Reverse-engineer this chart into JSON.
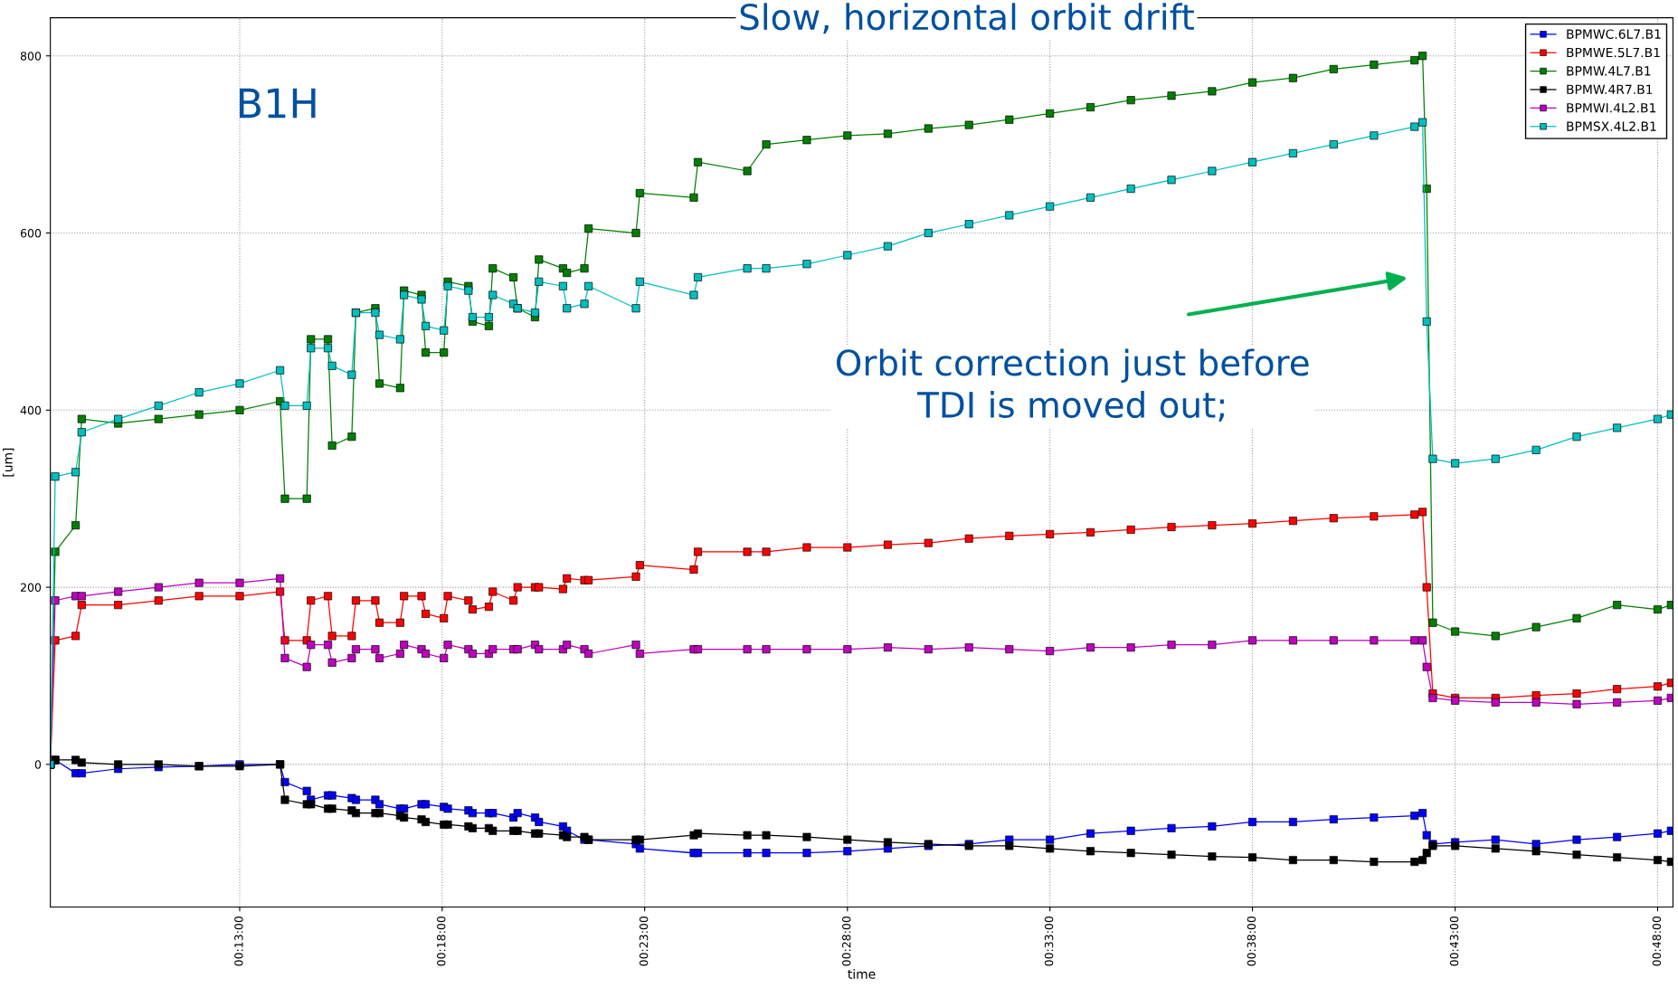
{
  "chart_data": {
    "type": "line",
    "title": "Slow, horizontal orbit drift",
    "xlabel": "time",
    "ylabel": "[um]",
    "x": [
      0.1388,
      0.1408,
      0.1492,
      0.1517,
      0.1667,
      0.1833,
      0.2,
      0.2167,
      0.2333,
      0.2353,
      0.2443,
      0.246,
      0.253,
      0.2547,
      0.2628,
      0.2645,
      0.2725,
      0.2742,
      0.2827,
      0.2843,
      0.2915,
      0.2932,
      0.3007,
      0.3023,
      0.3108,
      0.3125,
      0.3192,
      0.3208,
      0.3293,
      0.331,
      0.3382,
      0.3398,
      0.3497,
      0.3513,
      0.3585,
      0.3602,
      0.3797,
      0.3813,
      0.4035,
      0.4052,
      0.4255,
      0.4333,
      0.45,
      0.4667,
      0.4833,
      0.5,
      0.5167,
      0.5333,
      0.55,
      0.5667,
      0.5833,
      0.6,
      0.6167,
      0.6333,
      0.65,
      0.6667,
      0.6833,
      0.7,
      0.7033,
      0.705,
      0.7075,
      0.7167,
      0.7333,
      0.75,
      0.7667,
      0.7833,
      0.8,
      0.8055
    ],
    "series": [
      {
        "name": "BPMWC.6L7.B1",
        "color": "#0000ff",
        "values": [
          0,
          5,
          -10,
          -10,
          -5,
          -3,
          -2,
          0,
          0,
          -20,
          -30,
          -40,
          -35,
          -35,
          -38,
          -40,
          -40,
          -45,
          -50,
          -50,
          -45,
          -45,
          -48,
          -50,
          -52,
          -55,
          -55,
          -55,
          -60,
          -55,
          -60,
          -65,
          -70,
          -75,
          -85,
          -85,
          -90,
          -95,
          -100,
          -100,
          -100,
          -100,
          -100,
          -98,
          -95,
          -92,
          -90,
          -85,
          -85,
          -78,
          -75,
          -72,
          -70,
          -65,
          -65,
          -62,
          -60,
          -58,
          -55,
          -80,
          -90,
          -88,
          -85,
          -90,
          -85,
          -82,
          -78,
          -75
        ]
      },
      {
        "name": "BPMWE.5L7.B1",
        "color": "#ff0000",
        "values": [
          0,
          140,
          145,
          180,
          180,
          185,
          190,
          190,
          195,
          140,
          140,
          185,
          190,
          145,
          145,
          185,
          185,
          160,
          160,
          190,
          190,
          170,
          165,
          190,
          185,
          175,
          178,
          195,
          185,
          200,
          200,
          200,
          198,
          210,
          208,
          208,
          212,
          225,
          220,
          240,
          240,
          240,
          245,
          245,
          248,
          250,
          255,
          258,
          260,
          262,
          265,
          268,
          270,
          272,
          275,
          278,
          280,
          282,
          285,
          200,
          80,
          75,
          75,
          78,
          80,
          85,
          88,
          92
        ]
      },
      {
        "name": "BPMW.4L7.B1",
        "color": "#008000",
        "values": [
          0,
          240,
          270,
          390,
          385,
          390,
          395,
          400,
          410,
          300,
          300,
          480,
          480,
          360,
          370,
          510,
          515,
          430,
          425,
          535,
          530,
          465,
          465,
          545,
          540,
          500,
          495,
          560,
          550,
          515,
          505,
          570,
          560,
          555,
          560,
          605,
          600,
          645,
          640,
          680,
          670,
          700,
          705,
          710,
          712,
          718,
          722,
          728,
          735,
          742,
          750,
          755,
          760,
          770,
          775,
          785,
          790,
          795,
          800,
          650,
          160,
          150,
          145,
          155,
          165,
          180,
          175,
          180
        ]
      },
      {
        "name": "BPMW.4R7.B1",
        "color": "#000000",
        "values": [
          0,
          5,
          5,
          2,
          0,
          0,
          -2,
          -2,
          0,
          -40,
          -45,
          -45,
          -50,
          -50,
          -52,
          -55,
          -55,
          -55,
          -58,
          -60,
          -62,
          -65,
          -68,
          -68,
          -70,
          -72,
          -72,
          -75,
          -75,
          -75,
          -78,
          -78,
          -80,
          -82,
          -82,
          -85,
          -85,
          -85,
          -80,
          -78,
          -80,
          -80,
          -82,
          -85,
          -88,
          -90,
          -92,
          -92,
          -95,
          -98,
          -100,
          -102,
          -104,
          -105,
          -108,
          -108,
          -110,
          -110,
          -108,
          -100,
          -92,
          -92,
          -95,
          -98,
          -102,
          -105,
          -108,
          -110
        ]
      },
      {
        "name": "BPMWI.4L2.B1",
        "color": "#bf00bf",
        "values": [
          0,
          185,
          190,
          190,
          195,
          200,
          205,
          205,
          210,
          120,
          110,
          135,
          135,
          115,
          120,
          130,
          130,
          120,
          125,
          135,
          130,
          125,
          120,
          135,
          130,
          125,
          125,
          130,
          130,
          130,
          135,
          130,
          130,
          135,
          130,
          125,
          135,
          125,
          130,
          130,
          130,
          130,
          130,
          130,
          132,
          130,
          132,
          130,
          128,
          132,
          132,
          135,
          135,
          140,
          140,
          140,
          140,
          140,
          140,
          110,
          75,
          72,
          70,
          70,
          68,
          70,
          72,
          75
        ]
      },
      {
        "name": "BPMSX.4L2.B1",
        "color": "#00bfbf",
        "values": [
          0,
          325,
          330,
          375,
          390,
          405,
          420,
          430,
          445,
          405,
          405,
          470,
          470,
          450,
          440,
          510,
          510,
          485,
          480,
          530,
          525,
          495,
          490,
          540,
          535,
          505,
          505,
          530,
          520,
          515,
          510,
          545,
          540,
          515,
          520,
          540,
          515,
          545,
          530,
          550,
          560,
          560,
          565,
          575,
          585,
          600,
          610,
          620,
          630,
          640,
          650,
          660,
          670,
          680,
          690,
          700,
          710,
          720,
          725,
          500,
          345,
          340,
          345,
          355,
          370,
          380,
          390,
          395
        ]
      }
    ],
    "xlim": [
      0.1388,
      0.8063
    ],
    "ylim": [
      -161,
      843
    ],
    "xticks": [
      {
        "value": 0.2167,
        "label": "00:13:00"
      },
      {
        "value": 0.3,
        "label": "00:18:00"
      },
      {
        "value": 0.3833,
        "label": "00:23:00"
      },
      {
        "value": 0.4667,
        "label": "00:28:00"
      },
      {
        "value": 0.55,
        "label": "00:33:00"
      },
      {
        "value": 0.6333,
        "label": "00:38:00"
      },
      {
        "value": 0.7167,
        "label": "00:43:00"
      },
      {
        "value": 0.8,
        "label": "00:48:00"
      }
    ],
    "yticks": [
      0,
      200,
      400,
      600,
      800
    ],
    "annotations": [
      "B1H",
      "Orbit correction just before\nTDI is moved out;"
    ],
    "grid": true,
    "legend": "top right",
    "marker": "square",
    "line_style": "solid"
  }
}
